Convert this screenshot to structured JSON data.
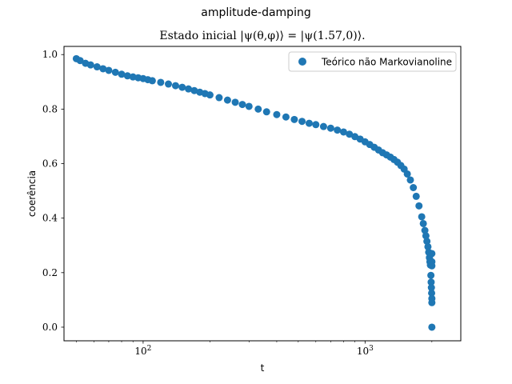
{
  "chart_data": {
    "type": "scatter",
    "title": "amplitude-damping",
    "subtitle": "Estado inicial |ψ(θ,φ)⟩ = |ψ(1.57,0)⟩.",
    "xlabel": "t",
    "ylabel": "coerência",
    "xscale": "log",
    "xlim": [
      44,
      2700
    ],
    "ylim": [
      -0.05,
      1.03
    ],
    "grid": false,
    "legend_position": "top-right",
    "color": "#1f77b4",
    "x_tick_labels": [
      {
        "value": 100,
        "base": "10",
        "exp": "2"
      },
      {
        "value": 1000,
        "base": "10",
        "exp": "3"
      }
    ],
    "y_ticks": [
      0.0,
      0.2,
      0.4,
      0.6,
      0.8,
      1.0
    ],
    "y_tick_labels": [
      "0.0",
      "0.2",
      "0.4",
      "0.6",
      "0.8",
      "1.0"
    ],
    "series": [
      {
        "name": "Teórico não Markovianoline",
        "x": [
          50,
          52,
          55,
          58,
          62,
          66,
          70,
          75,
          80,
          85,
          90,
          95,
          100,
          105,
          110,
          120,
          130,
          140,
          150,
          160,
          170,
          180,
          190,
          200,
          220,
          240,
          260,
          280,
          300,
          330,
          360,
          400,
          440,
          480,
          520,
          560,
          600,
          650,
          700,
          750,
          800,
          850,
          900,
          950,
          1000,
          1050,
          1100,
          1150,
          1200,
          1250,
          1300,
          1350,
          1400,
          1450,
          1500,
          1550,
          1600,
          1650,
          1700,
          1750,
          1800,
          1830,
          1860,
          1880,
          1900,
          1920,
          1935,
          1950,
          1960,
          1970,
          1980,
          1985,
          1990,
          1995,
          2000,
          2000,
          2000,
          2000,
          2000,
          2000
        ],
        "y": [
          0.985,
          0.978,
          0.968,
          0.962,
          0.955,
          0.948,
          0.942,
          0.935,
          0.928,
          0.922,
          0.918,
          0.915,
          0.912,
          0.908,
          0.904,
          0.898,
          0.892,
          0.886,
          0.88,
          0.874,
          0.868,
          0.862,
          0.857,
          0.852,
          0.842,
          0.833,
          0.825,
          0.817,
          0.81,
          0.8,
          0.79,
          0.78,
          0.771,
          0.762,
          0.755,
          0.748,
          0.743,
          0.736,
          0.73,
          0.723,
          0.716,
          0.708,
          0.699,
          0.69,
          0.68,
          0.67,
          0.66,
          0.65,
          0.64,
          0.632,
          0.624,
          0.615,
          0.605,
          0.593,
          0.58,
          0.562,
          0.54,
          0.512,
          0.48,
          0.445,
          0.405,
          0.38,
          0.355,
          0.335,
          0.315,
          0.295,
          0.275,
          0.255,
          0.24,
          0.228,
          0.19,
          0.165,
          0.145,
          0.125,
          0.105,
          0.09,
          0.27,
          0.24,
          0.225,
          0.0
        ]
      }
    ]
  }
}
